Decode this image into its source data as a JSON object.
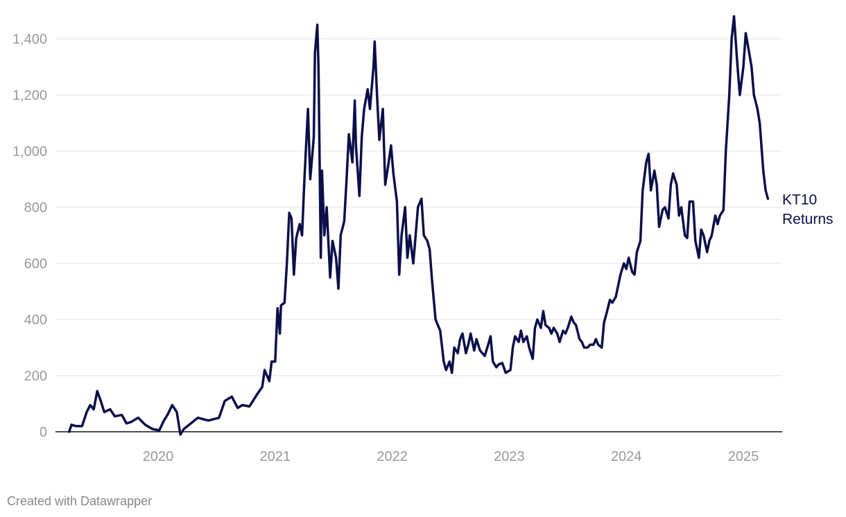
{
  "chart_data": {
    "type": "line",
    "title": "",
    "xlabel": "",
    "ylabel": "",
    "xlim": [
      2019.24,
      2025.21
    ],
    "ylim": [
      0,
      1400
    ],
    "grid": true,
    "x_ticks": [
      "2020",
      "2021",
      "2022",
      "2023",
      "2024",
      "2025"
    ],
    "x_tick_values": [
      2020,
      2021,
      2022,
      2023,
      2024,
      2025
    ],
    "y_ticks": [
      "0",
      "200",
      "400",
      "600",
      "800",
      "1,000",
      "1,200",
      "1,400"
    ],
    "y_tick_values": [
      0,
      200,
      400,
      600,
      800,
      1000,
      1200,
      1400
    ],
    "series": [
      {
        "name": "KT10 Returns",
        "label_lines": [
          "KT10",
          "Returns"
        ],
        "color": "#0b0f4a",
        "points": [
          [
            2019.24,
            0
          ],
          [
            2019.26,
            25
          ],
          [
            2019.3,
            20
          ],
          [
            2019.35,
            20
          ],
          [
            2019.39,
            70
          ],
          [
            2019.42,
            95
          ],
          [
            2019.45,
            80
          ],
          [
            2019.48,
            145
          ],
          [
            2019.51,
            110
          ],
          [
            2019.54,
            70
          ],
          [
            2019.59,
            80
          ],
          [
            2019.63,
            55
          ],
          [
            2019.69,
            60
          ],
          [
            2019.73,
            30
          ],
          [
            2019.77,
            35
          ],
          [
            2019.83,
            50
          ],
          [
            2019.89,
            25
          ],
          [
            2019.95,
            10
          ],
          [
            2020.01,
            5
          ],
          [
            2020.05,
            40
          ],
          [
            2020.08,
            60
          ],
          [
            2020.12,
            95
          ],
          [
            2020.16,
            70
          ],
          [
            2020.19,
            -10
          ],
          [
            2020.22,
            10
          ],
          [
            2020.28,
            30
          ],
          [
            2020.34,
            50
          ],
          [
            2020.43,
            40
          ],
          [
            2020.52,
            50
          ],
          [
            2020.57,
            110
          ],
          [
            2020.63,
            125
          ],
          [
            2020.68,
            85
          ],
          [
            2020.72,
            95
          ],
          [
            2020.78,
            90
          ],
          [
            2020.84,
            130
          ],
          [
            2020.89,
            160
          ],
          [
            2020.91,
            220
          ],
          [
            2020.95,
            180
          ],
          [
            2020.97,
            250
          ],
          [
            2021.0,
            250
          ],
          [
            2021.02,
            440
          ],
          [
            2021.04,
            350
          ],
          [
            2021.05,
            450
          ],
          [
            2021.08,
            460
          ],
          [
            2021.1,
            600
          ],
          [
            2021.12,
            780
          ],
          [
            2021.14,
            760
          ],
          [
            2021.16,
            560
          ],
          [
            2021.18,
            690
          ],
          [
            2021.21,
            740
          ],
          [
            2021.23,
            700
          ],
          [
            2021.25,
            900
          ],
          [
            2021.28,
            1150
          ],
          [
            2021.3,
            900
          ],
          [
            2021.33,
            1050
          ],
          [
            2021.34,
            1350
          ],
          [
            2021.36,
            1450
          ],
          [
            2021.37,
            1300
          ],
          [
            2021.39,
            620
          ],
          [
            2021.4,
            930
          ],
          [
            2021.42,
            700
          ],
          [
            2021.44,
            800
          ],
          [
            2021.47,
            550
          ],
          [
            2021.49,
            680
          ],
          [
            2021.52,
            620
          ],
          [
            2021.54,
            510
          ],
          [
            2021.56,
            700
          ],
          [
            2021.59,
            750
          ],
          [
            2021.61,
            900
          ],
          [
            2021.63,
            1060
          ],
          [
            2021.66,
            960
          ],
          [
            2021.68,
            1180
          ],
          [
            2021.69,
            1020
          ],
          [
            2021.72,
            840
          ],
          [
            2021.74,
            1050
          ],
          [
            2021.76,
            1150
          ],
          [
            2021.79,
            1220
          ],
          [
            2021.81,
            1150
          ],
          [
            2021.84,
            1300
          ],
          [
            2021.85,
            1390
          ],
          [
            2021.87,
            1200
          ],
          [
            2021.89,
            1040
          ],
          [
            2021.92,
            1150
          ],
          [
            2021.94,
            880
          ],
          [
            2021.97,
            960
          ],
          [
            2021.99,
            1020
          ],
          [
            2022.01,
            920
          ],
          [
            2022.04,
            820
          ],
          [
            2022.06,
            560
          ],
          [
            2022.08,
            700
          ],
          [
            2022.11,
            800
          ],
          [
            2022.13,
            620
          ],
          [
            2022.15,
            700
          ],
          [
            2022.18,
            600
          ],
          [
            2022.2,
            700
          ],
          [
            2022.22,
            800
          ],
          [
            2022.25,
            830
          ],
          [
            2022.27,
            700
          ],
          [
            2022.3,
            680
          ],
          [
            2022.32,
            650
          ],
          [
            2022.34,
            540
          ],
          [
            2022.37,
            400
          ],
          [
            2022.39,
            380
          ],
          [
            2022.41,
            360
          ],
          [
            2022.44,
            250
          ],
          [
            2022.46,
            220
          ],
          [
            2022.49,
            250
          ],
          [
            2022.51,
            210
          ],
          [
            2022.53,
            300
          ],
          [
            2022.56,
            280
          ],
          [
            2022.58,
            330
          ],
          [
            2022.6,
            350
          ],
          [
            2022.63,
            280
          ],
          [
            2022.65,
            310
          ],
          [
            2022.67,
            350
          ],
          [
            2022.7,
            290
          ],
          [
            2022.72,
            330
          ],
          [
            2022.75,
            290
          ],
          [
            2022.77,
            280
          ],
          [
            2022.79,
            270
          ],
          [
            2022.82,
            310
          ],
          [
            2022.84,
            340
          ],
          [
            2022.86,
            250
          ],
          [
            2022.89,
            230
          ],
          [
            2022.91,
            240
          ],
          [
            2022.94,
            245
          ],
          [
            2022.97,
            210
          ],
          [
            2023.01,
            220
          ],
          [
            2023.03,
            300
          ],
          [
            2023.05,
            340
          ],
          [
            2023.08,
            320
          ],
          [
            2023.1,
            360
          ],
          [
            2023.12,
            320
          ],
          [
            2023.15,
            340
          ],
          [
            2023.17,
            300
          ],
          [
            2023.2,
            260
          ],
          [
            2023.22,
            370
          ],
          [
            2023.24,
            400
          ],
          [
            2023.27,
            370
          ],
          [
            2023.29,
            430
          ],
          [
            2023.31,
            380
          ],
          [
            2023.34,
            370
          ],
          [
            2023.36,
            350
          ],
          [
            2023.38,
            370
          ],
          [
            2023.41,
            350
          ],
          [
            2023.43,
            320
          ],
          [
            2023.46,
            360
          ],
          [
            2023.48,
            350
          ],
          [
            2023.5,
            370
          ],
          [
            2023.53,
            410
          ],
          [
            2023.55,
            390
          ],
          [
            2023.57,
            380
          ],
          [
            2023.6,
            330
          ],
          [
            2023.62,
            320
          ],
          [
            2023.64,
            300
          ],
          [
            2023.67,
            300
          ],
          [
            2023.69,
            310
          ],
          [
            2023.72,
            310
          ],
          [
            2023.74,
            330
          ],
          [
            2023.76,
            310
          ],
          [
            2023.79,
            300
          ],
          [
            2023.81,
            390
          ],
          [
            2023.83,
            420
          ],
          [
            2023.86,
            470
          ],
          [
            2023.88,
            460
          ],
          [
            2023.91,
            480
          ],
          [
            2023.93,
            520
          ],
          [
            2023.95,
            560
          ],
          [
            2023.98,
            600
          ],
          [
            2024.0,
            580
          ],
          [
            2024.02,
            620
          ],
          [
            2024.05,
            570
          ],
          [
            2024.07,
            560
          ],
          [
            2024.09,
            640
          ],
          [
            2024.12,
            680
          ],
          [
            2024.14,
            860
          ],
          [
            2024.17,
            960
          ],
          [
            2024.19,
            990
          ],
          [
            2024.21,
            860
          ],
          [
            2024.24,
            930
          ],
          [
            2024.26,
            880
          ],
          [
            2024.28,
            730
          ],
          [
            2024.31,
            790
          ],
          [
            2024.33,
            800
          ],
          [
            2024.36,
            760
          ],
          [
            2024.38,
            880
          ],
          [
            2024.4,
            920
          ],
          [
            2024.43,
            880
          ],
          [
            2024.45,
            770
          ],
          [
            2024.47,
            800
          ],
          [
            2024.5,
            700
          ],
          [
            2024.52,
            690
          ],
          [
            2024.54,
            820
          ],
          [
            2024.57,
            820
          ],
          [
            2024.59,
            680
          ],
          [
            2024.62,
            620
          ],
          [
            2024.64,
            720
          ],
          [
            2024.66,
            700
          ],
          [
            2024.69,
            640
          ],
          [
            2024.71,
            680
          ],
          [
            2024.73,
            700
          ],
          [
            2024.76,
            770
          ],
          [
            2024.78,
            740
          ],
          [
            2024.8,
            770
          ],
          [
            2024.83,
            790
          ],
          [
            2024.85,
            1000
          ],
          [
            2024.88,
            1200
          ],
          [
            2024.9,
            1400
          ],
          [
            2024.92,
            1480
          ],
          [
            2024.95,
            1300
          ],
          [
            2024.97,
            1200
          ],
          [
            2025.0,
            1300
          ],
          [
            2025.02,
            1420
          ],
          [
            2025.05,
            1350
          ],
          [
            2025.07,
            1300
          ],
          [
            2025.09,
            1200
          ],
          [
            2025.12,
            1150
          ],
          [
            2025.14,
            1100
          ],
          [
            2025.17,
            930
          ],
          [
            2025.19,
            860
          ],
          [
            2025.21,
            830
          ]
        ]
      }
    ]
  },
  "footer": {
    "credit": "Created with Datawrapper"
  }
}
